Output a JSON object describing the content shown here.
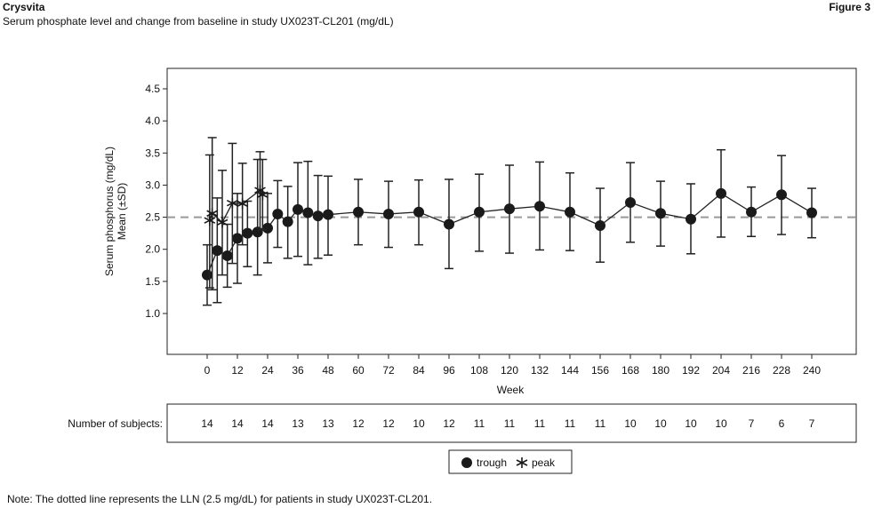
{
  "header": {
    "brand": "Crysvita",
    "figure": "Figure 3",
    "subtitle": "Serum phosphate level and change from baseline in study UX023T-CL201 (mg/dL)"
  },
  "note": "Note: The dotted line represents the LLN (2.5 mg/dL) for patients in study UX023T-CL201.",
  "subjects": {
    "label": "Number of subjects:",
    "weeks": [
      0,
      12,
      24,
      36,
      48,
      60,
      72,
      84,
      96,
      108,
      120,
      132,
      144,
      156,
      168,
      180,
      192,
      204,
      216,
      228,
      240
    ],
    "counts": [
      "14",
      "14",
      "14",
      "13",
      "13",
      "12",
      "12",
      "10",
      "12",
      "11",
      "11",
      "11",
      "11",
      "11",
      "10",
      "10",
      "10",
      "10",
      "7",
      "6",
      "7"
    ]
  },
  "chart_data": {
    "type": "line",
    "xlabel": "Week",
    "ylabel": [
      "Serum phosphorus (mg/dL)",
      "Mean (±SD)"
    ],
    "xlim": [
      -12,
      252
    ],
    "ylim": [
      0.3,
      4.75
    ],
    "xticks": [
      0,
      12,
      24,
      36,
      48,
      60,
      72,
      84,
      96,
      108,
      120,
      132,
      144,
      156,
      168,
      180,
      192,
      204,
      216,
      228,
      240
    ],
    "yticks": [
      "1.0",
      "1.5",
      "2.0",
      "2.5",
      "3.0",
      "3.5",
      "4.0",
      "4.5"
    ],
    "reference_line": {
      "y": 2.5,
      "label": "LLN"
    },
    "legend": {
      "placement": "bottom-center",
      "entries": [
        "trough",
        "peak"
      ]
    },
    "series": [
      {
        "name": "trough",
        "marker": "circle",
        "x": [
          0,
          4,
          8,
          12,
          16,
          20,
          24,
          28,
          32,
          36,
          40,
          44,
          48,
          60,
          72,
          84,
          96,
          108,
          120,
          132,
          144,
          156,
          168,
          180,
          192,
          204,
          216,
          228,
          240
        ],
        "y": [
          1.6,
          1.98,
          1.9,
          2.17,
          2.25,
          2.27,
          2.33,
          2.55,
          2.43,
          2.62,
          2.57,
          2.52,
          2.54,
          2.58,
          2.55,
          2.58,
          2.39,
          2.58,
          2.63,
          2.67,
          2.58,
          2.37,
          2.73,
          2.56,
          2.47,
          2.87,
          2.58,
          2.85,
          2.57
        ],
        "lower": [
          1.13,
          1.17,
          1.41,
          1.47,
          1.73,
          1.6,
          1.79,
          2.03,
          1.86,
          1.89,
          1.76,
          1.86,
          1.91,
          2.07,
          2.03,
          2.07,
          1.7,
          1.97,
          1.94,
          1.99,
          1.98,
          1.8,
          2.11,
          2.05,
          1.93,
          2.19,
          2.2,
          2.23,
          2.18
        ],
        "upper": [
          2.07,
          2.8,
          2.39,
          2.87,
          2.75,
          3.4,
          2.87,
          3.07,
          2.98,
          3.35,
          3.37,
          3.15,
          3.14,
          3.09,
          3.06,
          3.08,
          3.09,
          3.17,
          3.31,
          3.36,
          3.19,
          2.95,
          3.35,
          3.06,
          3.02,
          3.55,
          2.97,
          3.46,
          2.95
        ]
      },
      {
        "name": "peak",
        "marker": "asterisk",
        "x": [
          1,
          2,
          6,
          10,
          14,
          21,
          22
        ],
        "y": [
          2.45,
          2.56,
          2.42,
          2.72,
          2.71,
          2.92,
          2.85
        ],
        "lower": [
          1.4,
          1.37,
          1.6,
          1.78,
          2.07,
          2.32,
          2.3
        ],
        "upper": [
          3.47,
          3.74,
          3.23,
          3.65,
          3.34,
          3.52,
          3.4
        ]
      }
    ]
  }
}
